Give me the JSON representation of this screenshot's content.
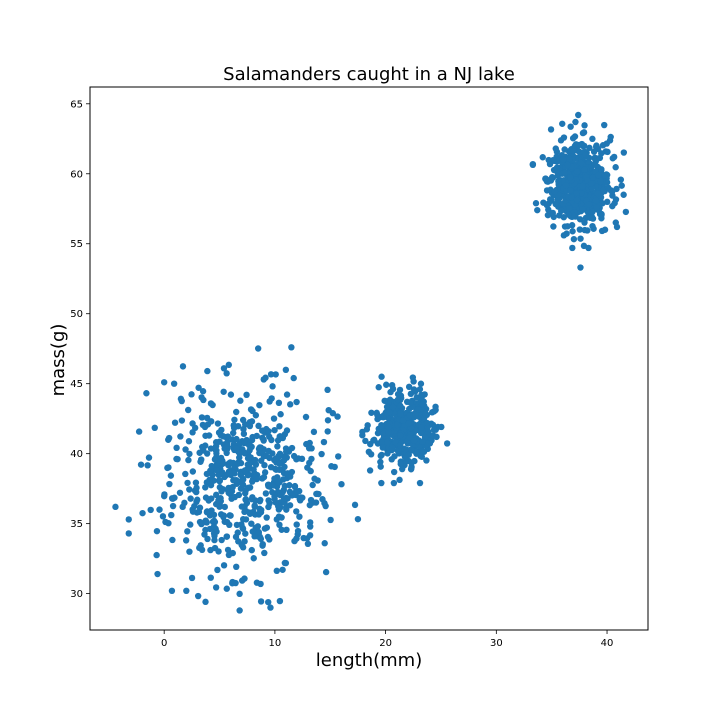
{
  "chart_data": {
    "type": "scatter",
    "title": "Salamanders caught in a NJ lake",
    "xlabel": "length(mm)",
    "ylabel": "mass(g)",
    "xlim": [
      -6.7,
      43.7
    ],
    "ylim": [
      27.4,
      66.2
    ],
    "xticks": [
      0,
      10,
      20,
      30,
      40
    ],
    "yticks": [
      30,
      35,
      40,
      45,
      50,
      55,
      60,
      65
    ],
    "grid": false,
    "marker_color": "#1f77b4",
    "clusters": [
      {
        "center": [
          7,
          38
        ],
        "std": [
          3.5,
          3.2
        ],
        "count": 600
      },
      {
        "center": [
          21.8,
          41.8
        ],
        "std": [
          1.3,
          1.3
        ],
        "count": 400
      },
      {
        "center": [
          37.5,
          59.2
        ],
        "std": [
          1.4,
          1.5
        ],
        "count": 600
      }
    ],
    "outliers": [
      {
        "x": -4.4,
        "y": 36.2
      },
      {
        "x": -3.2,
        "y": 35.3
      },
      {
        "x": -3.2,
        "y": 34.3
      },
      {
        "x": 0.0,
        "y": 45.1
      },
      {
        "x": 0.9,
        "y": 45.0
      },
      {
        "x": 5.4,
        "y": 46.1
      },
      {
        "x": 3.9,
        "y": 45.9
      },
      {
        "x": 11.7,
        "y": 45.4
      },
      {
        "x": 9.6,
        "y": 29.0
      },
      {
        "x": 0.7,
        "y": 30.2
      },
      {
        "x": 2.0,
        "y": 30.2
      },
      {
        "x": -0.6,
        "y": 31.4
      },
      {
        "x": 14.5,
        "y": 33.6
      },
      {
        "x": 15.1,
        "y": 39.1
      },
      {
        "x": 18.6,
        "y": 38.8
      },
      {
        "x": 24.6,
        "y": 41.2
      },
      {
        "x": 23.1,
        "y": 44.6
      },
      {
        "x": 21.5,
        "y": 38.9
      },
      {
        "x": 37.6,
        "y": 53.3
      },
      {
        "x": 37.4,
        "y": 64.2
      },
      {
        "x": 41.5,
        "y": 58.5
      },
      {
        "x": 33.7,
        "y": 57.4
      },
      {
        "x": 40.9,
        "y": 56.2
      },
      {
        "x": 36.1,
        "y": 55.6
      }
    ]
  }
}
